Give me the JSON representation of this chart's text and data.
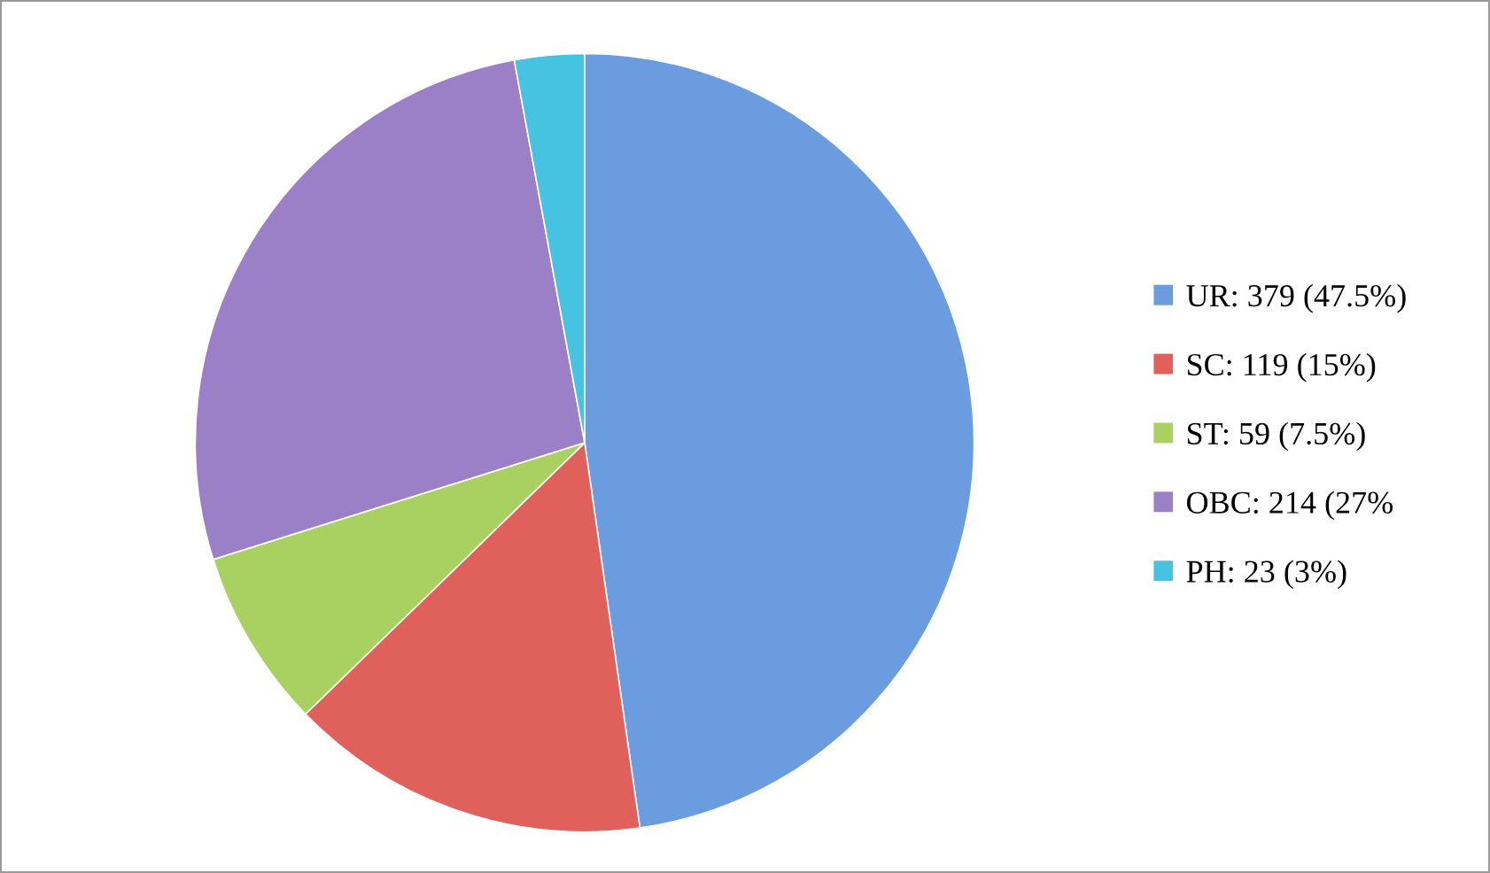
{
  "chart_data": {
    "type": "pie",
    "categories": [
      "UR: 379 (47.5%)",
      "SC: 119 (15%)",
      "ST: 59 (7.5%)",
      "OBC: 214 (27%",
      "PH: 23 (3%)"
    ],
    "values": [
      379,
      119,
      59,
      214,
      23
    ],
    "colors": [
      "#6b9ce0",
      "#e0605c",
      "#a9d161",
      "#9b80c8",
      "#45c3e0"
    ],
    "legend": "right"
  }
}
